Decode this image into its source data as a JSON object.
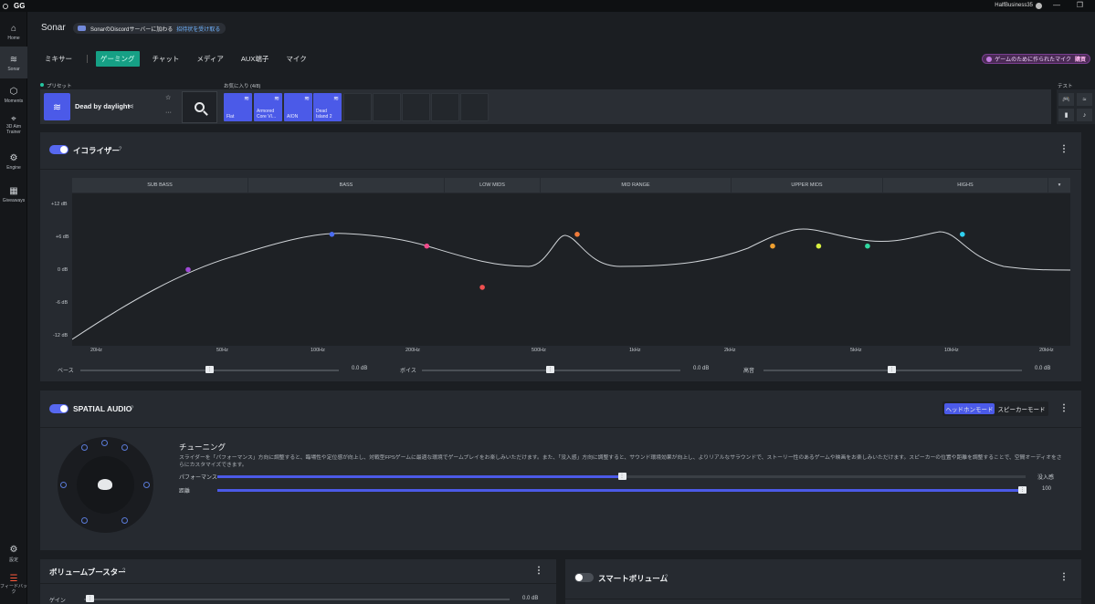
{
  "app": {
    "logo": "GG",
    "username": "HalfBusiness35",
    "window_buttons": {
      "minimize": "—",
      "restore": "❐"
    }
  },
  "sidebar": {
    "items": [
      {
        "label": "Home",
        "icon": "home-icon"
      },
      {
        "label": "Sonar",
        "icon": "sonar-icon",
        "active": true
      },
      {
        "label": "Moments",
        "icon": "moments-icon"
      },
      {
        "label": "3D Aim Trainer",
        "icon": "aim-trainer-icon"
      },
      {
        "label": "Engine",
        "icon": "engine-icon"
      },
      {
        "label": "Giveaways",
        "icon": "giveaways-icon"
      },
      {
        "label": "設定",
        "icon": "gear-icon"
      },
      {
        "label": "フィードバック",
        "icon": "feedback-icon"
      }
    ]
  },
  "header": {
    "title": "Sonar",
    "discord_text": "SonarのDiscordサーバーに加わる",
    "discord_link": "招待状を受け取る"
  },
  "tabs": {
    "mixer": "ミキサー",
    "items": [
      "ゲーミング",
      "チャット",
      "メディア",
      "AUX端子",
      "マイク"
    ],
    "active": "ゲーミング"
  },
  "mic_promo": {
    "text": "ゲームのために作られたマイク",
    "action": "購買"
  },
  "preset": {
    "label": "プリセット",
    "name": "Dead by daylight",
    "favorites_label": "お気に入り (4/8)",
    "favorites": [
      "Flat",
      "Armored Core VI...",
      "AION",
      "Dead Island 2",
      "",
      "",
      "",
      "",
      ""
    ],
    "test_label": "テスト"
  },
  "equalizer": {
    "title": "イコライザー",
    "help": "?",
    "enabled": true,
    "bands": [
      "SUB BASS",
      "BASS",
      "LOW MIDS",
      "MID RANGE",
      "UPPER MIDS",
      "HIGHS"
    ],
    "y_labels": [
      "+12 dB",
      "+6 dB",
      "0 dB",
      "-6 dB",
      "-12 dB"
    ],
    "x_labels": [
      "20Hz",
      "50Hz",
      "100Hz",
      "200Hz",
      "500Hz",
      "1kHz",
      "2kHz",
      "5kHz",
      "10kHz",
      "20kHz"
    ],
    "points": [
      {
        "freq": 35,
        "gain": 0,
        "color": "#a04ad8"
      },
      {
        "freq": 100,
        "gain": 6,
        "color": "#4b6cf0"
      },
      {
        "freq": 200,
        "gain": 4,
        "color": "#f04a8a"
      },
      {
        "freq": 300,
        "gain": -3,
        "color": "#f05050"
      },
      {
        "freq": 600,
        "gain": 6,
        "color": "#f07b3a"
      },
      {
        "freq": 2500,
        "gain": 4,
        "color": "#f0a030"
      },
      {
        "freq": 3500,
        "gain": 4,
        "color": "#d8f040"
      },
      {
        "freq": 5000,
        "gain": 4,
        "color": "#30d8a0"
      },
      {
        "freq": 10000,
        "gain": 6,
        "color": "#30d0f0"
      }
    ],
    "sliders": [
      {
        "label": "ベース",
        "value": "0.0 dB",
        "level": 0.5
      },
      {
        "label": "ボイス",
        "value": "0.0 dB",
        "level": 0.5
      },
      {
        "label": "高音",
        "value": "0.0 dB",
        "level": 0.5
      }
    ]
  },
  "spatial": {
    "title": "SPATIAL AUDIO",
    "help": "?",
    "enabled": true,
    "modes": [
      "ヘッドホンモード",
      "スピーカーモード"
    ],
    "active_mode": "ヘッドホンモード",
    "tuning_title": "チューニング",
    "tuning_desc": "スライダーを「パフォーマンス」方向に調整すると、臨場性や定位感が向上し、対戦型FPSゲームに最適な環境でゲームプレイをお楽しみいただけます。また、「没入感」方向に調整すると、サウンド環境効果が向上し、よりリアルなサラウンドで、ストーリー性のあるゲームや映画をお楽しみいただけます。スピーカーの位置や距離を調整することで、空間オーディオをさらにカスタマイズできます。",
    "perf_label": "パフォーマンス",
    "immersion_label": "没入感",
    "perf_level": 0.5,
    "distance_label": "距離",
    "distance_value": "100",
    "distance_level": 1.0
  },
  "booster": {
    "title": "ボリュームブースター",
    "help": "?",
    "gain_label": "ゲイン",
    "gain_value": "0.0 dB"
  },
  "smart_volume": {
    "title": "スマートボリューム",
    "help": "?",
    "enabled": false
  },
  "colors": {
    "accent": "#4b5ae8",
    "active_tab": "#16a085",
    "panel": "#262a30",
    "background": "#1b1e22"
  }
}
